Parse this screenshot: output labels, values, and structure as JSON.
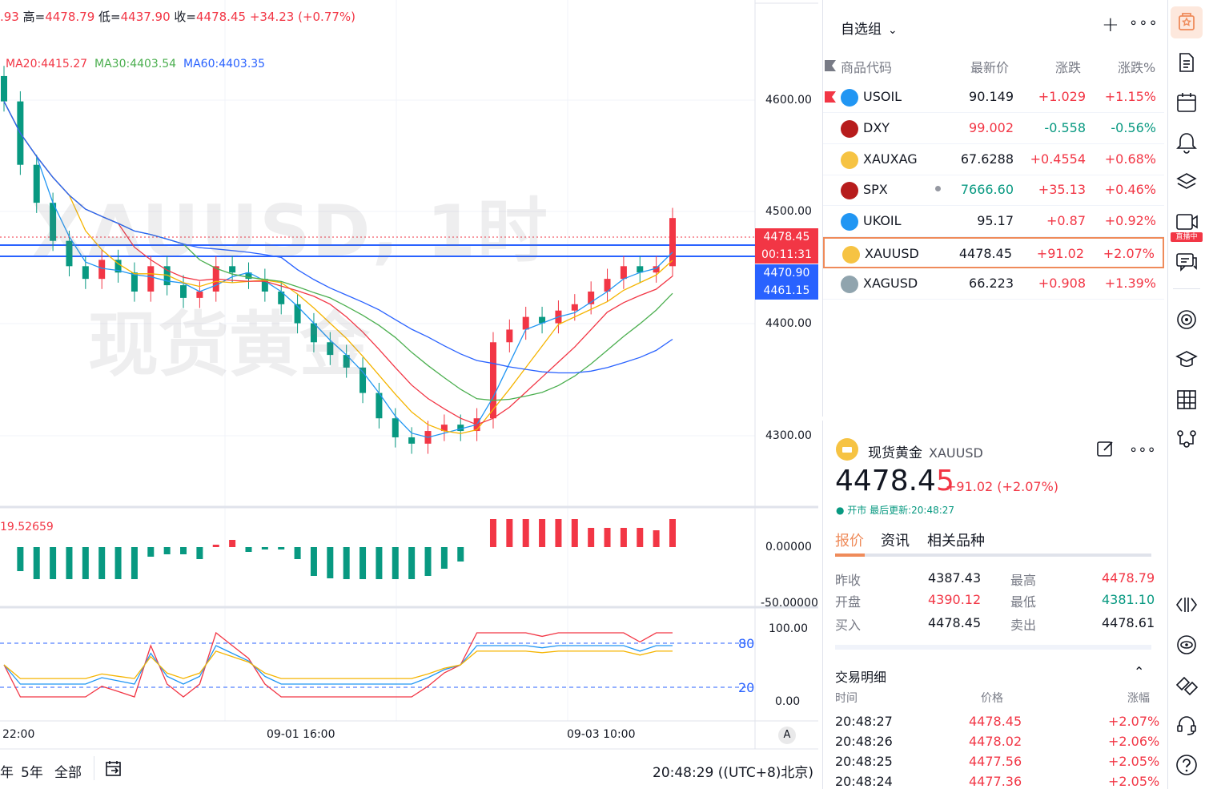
{
  "chart": {
    "symbol_watermark": "XAUUSD, 1时",
    "name_watermark": "现货黄金",
    "ohlc": {
      "open_tail": ".93",
      "high_label": "高=",
      "high": "4478.79",
      "low_label": "低=",
      "low": "4437.90",
      "close_label": "收=",
      "close": "4478.45",
      "change": "+34.23 (+0.77%)"
    },
    "ma": {
      "ma20": "MA20:4415.27",
      "ma30": "MA30:4403.54",
      "ma60": "MA60:4403.35",
      "colors": {
        "ma20": "#f23645",
        "ma30": "#4caf50",
        "ma60": "#2962ff",
        "ma10": "#f5b400",
        "ma5": "#2196f3"
      }
    },
    "price_axis": [
      "4600.00",
      "4500.00",
      "4400.00",
      "4300.00"
    ],
    "tags": {
      "last": "4478.45",
      "countdown": "00:11:31",
      "line1": "4470.90",
      "line2": "4461.15"
    },
    "macd": {
      "value": "19.52659",
      "axis": [
        "0.00000",
        "-50.00000"
      ]
    },
    "stoch": {
      "axis": [
        "100.00",
        "0.00"
      ],
      "levels": [
        "80",
        "20"
      ]
    },
    "time_axis": [
      "22:00",
      "09-01 16:00",
      "09-03 10:00"
    ],
    "auto_label": "A",
    "bottom": {
      "ranges": [
        "年",
        "5年",
        "全部"
      ],
      "clock": "20:48:29 ((UTC+8)北京)"
    },
    "chart_data": {
      "type": "candlestick",
      "series_ohlc_approx_close": [
        4570,
        4520,
        4490,
        4460,
        4440,
        4430,
        4445,
        4435,
        4420,
        4440,
        4425,
        4415,
        4420,
        4440,
        4435,
        4430,
        4420,
        4410,
        4395,
        4380,
        4370,
        4360,
        4340,
        4320,
        4305,
        4300,
        4310,
        4315,
        4310,
        4320,
        4380,
        4390,
        4400,
        4395,
        4405,
        4410,
        4420,
        4430,
        4440,
        4435,
        4440,
        4478
      ],
      "ylim": [
        4250,
        4650
      ]
    }
  },
  "watchlist": {
    "title": "自选组",
    "headers": {
      "symbol": "商品代码",
      "last": "最新价",
      "chg": "涨跌",
      "pct": "涨跌%"
    },
    "rows": [
      {
        "sym": "USOIL",
        "last": "90.149",
        "chg": "+1.029",
        "pct": "+1.15%",
        "dir": "pos",
        "icon_color": "#2196f3",
        "flag": true
      },
      {
        "sym": "DXY",
        "last": "99.002",
        "chg": "-0.558",
        "pct": "-0.56%",
        "dir": "neg",
        "icon_color": "#b71c1c"
      },
      {
        "sym": "XAUXAG",
        "last": "67.6288",
        "chg": "+0.4554",
        "pct": "+0.68%",
        "dir": "pos",
        "icon_color": "#f6c343"
      },
      {
        "sym": "SPX",
        "last": "7666.60",
        "chg": "+35.13",
        "pct": "+0.46%",
        "dir": "pos",
        "icon_color": "#b71c1c",
        "dot": true,
        "last_color": "neg"
      },
      {
        "sym": "UKOIL",
        "last": "95.17",
        "chg": "+0.87",
        "pct": "+0.92%",
        "dir": "pos",
        "icon_color": "#2196f3"
      },
      {
        "sym": "XAUUSD",
        "last": "4478.45",
        "chg": "+91.02",
        "pct": "+2.07%",
        "dir": "pos",
        "icon_color": "#f6c343",
        "selected": true
      },
      {
        "sym": "XAGUSD",
        "last": "66.223",
        "chg": "+0.908",
        "pct": "+1.39%",
        "dir": "pos",
        "icon_color": "#90a4ae"
      }
    ]
  },
  "detail": {
    "name": "现货黄金",
    "code": "XAUUSD",
    "price_main": "4478.4",
    "price_last": "5",
    "change": "+91.02 (+2.07%)",
    "status": "● 开市 最后更新:20:48:27",
    "tabs": [
      "报价",
      "资讯",
      "相关品种"
    ],
    "quote": {
      "prev_close_lbl": "昨收",
      "prev_close": "4387.43",
      "high_lbl": "最高",
      "high": "4478.79",
      "open_lbl": "开盘",
      "open": "4390.12",
      "low_lbl": "最低",
      "low": "4381.10",
      "bid_lbl": "买入",
      "bid": "4478.45",
      "ask_lbl": "卖出",
      "ask": "4478.61"
    },
    "trades_title": "交易明细",
    "trades_headers": {
      "time": "时间",
      "price": "价格",
      "pct": "涨幅"
    },
    "trades": [
      {
        "time": "20:48:27",
        "price": "4478.45",
        "pct": "+2.07%"
      },
      {
        "time": "20:48:26",
        "price": "4478.02",
        "pct": "+2.06%"
      },
      {
        "time": "20:48:25",
        "price": "4477.56",
        "pct": "+2.05%"
      },
      {
        "time": "20:48:24",
        "price": "4477.36",
        "pct": "+2.05%"
      }
    ]
  },
  "toolbar": {
    "live_label": "直播中",
    "icons": [
      "watchlist-icon",
      "news-icon",
      "calendar-icon",
      "alert-icon",
      "layers-icon",
      "live-icon",
      "chat-icon",
      "target-icon",
      "education-icon",
      "grid-icon",
      "hierarchy-icon",
      "code-icon",
      "eye-icon",
      "screener-icon",
      "support-icon",
      "help-icon"
    ]
  }
}
